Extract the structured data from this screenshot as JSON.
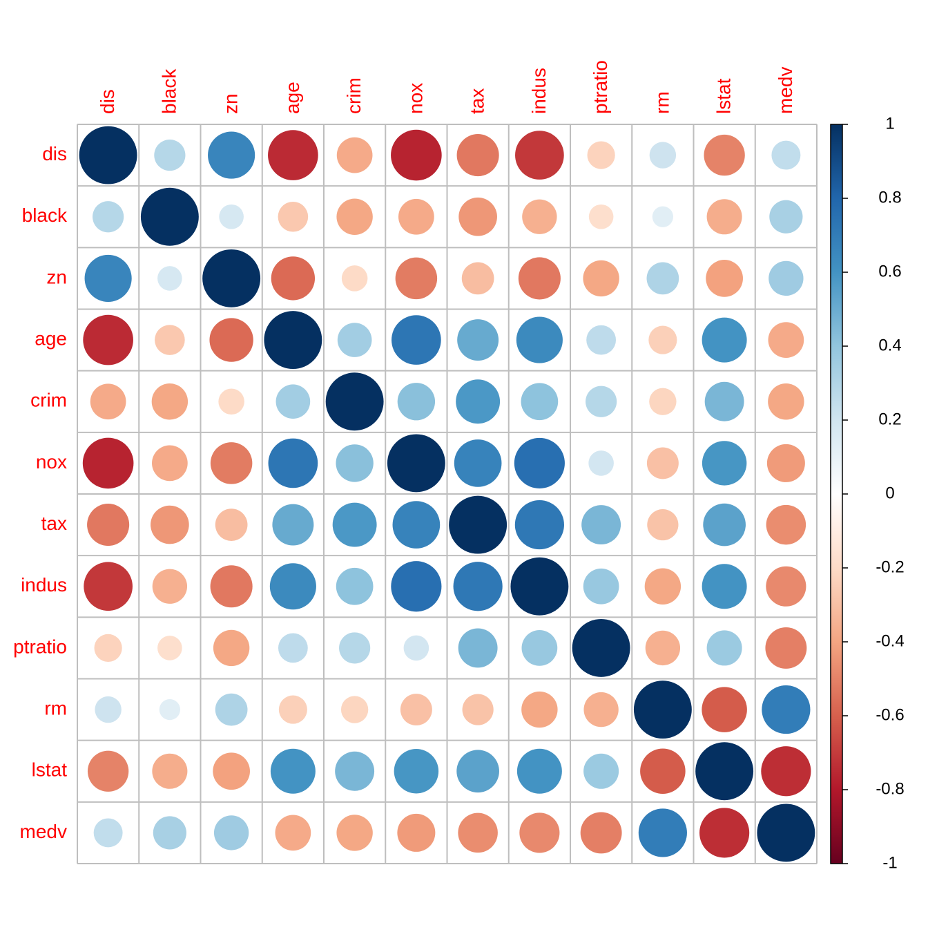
{
  "chart_data": {
    "type": "corrplot",
    "variables": [
      "dis",
      "black",
      "zn",
      "age",
      "crim",
      "nox",
      "tax",
      "indus",
      "ptratio",
      "rm",
      "lstat",
      "medv"
    ],
    "matrix": [
      [
        1,
        0.29,
        0.66,
        -0.75,
        -0.38,
        -0.77,
        -0.53,
        -0.71,
        -0.23,
        0.21,
        -0.5,
        0.25
      ],
      [
        0.29,
        1,
        0.18,
        -0.27,
        -0.39,
        -0.38,
        -0.44,
        -0.36,
        -0.18,
        0.13,
        -0.37,
        0.33
      ],
      [
        0.66,
        0.18,
        1,
        -0.57,
        -0.2,
        -0.52,
        -0.31,
        -0.53,
        -0.39,
        0.31,
        -0.41,
        0.36
      ],
      [
        -0.75,
        -0.27,
        -0.57,
        1,
        0.35,
        0.73,
        0.51,
        0.64,
        0.26,
        -0.24,
        0.6,
        -0.38
      ],
      [
        -0.38,
        -0.39,
        -0.2,
        0.35,
        1,
        0.42,
        0.58,
        0.41,
        0.29,
        -0.22,
        0.46,
        -0.39
      ],
      [
        -0.77,
        -0.38,
        -0.52,
        0.73,
        0.42,
        1,
        0.67,
        0.76,
        0.19,
        -0.3,
        0.59,
        -0.43
      ],
      [
        -0.53,
        -0.44,
        -0.31,
        0.51,
        0.58,
        0.67,
        1,
        0.72,
        0.46,
        -0.29,
        0.54,
        -0.47
      ],
      [
        -0.71,
        -0.36,
        -0.53,
        0.64,
        0.41,
        0.76,
        0.72,
        1,
        0.38,
        -0.39,
        0.6,
        -0.48
      ],
      [
        -0.23,
        -0.18,
        -0.39,
        0.26,
        0.29,
        0.19,
        0.46,
        0.38,
        1,
        -0.36,
        0.37,
        -0.51
      ],
      [
        0.21,
        0.13,
        0.31,
        -0.24,
        -0.22,
        -0.3,
        -0.29,
        -0.39,
        -0.36,
        1,
        -0.61,
        0.7
      ],
      [
        -0.5,
        -0.37,
        -0.41,
        0.6,
        0.46,
        0.59,
        0.54,
        0.6,
        0.37,
        -0.61,
        1,
        -0.74
      ],
      [
        0.25,
        0.33,
        0.36,
        -0.38,
        -0.39,
        -0.43,
        -0.47,
        -0.48,
        -0.51,
        0.7,
        -0.74,
        1
      ]
    ],
    "colors": [
      "#67001F",
      "#B2182B",
      "#D6604D",
      "#F4A582",
      "#FDDBC7",
      "#FFFFFF",
      "#D1E5F0",
      "#92C5DE",
      "#4393C3",
      "#2166AC",
      "#053061"
    ],
    "label_color": "#FF0000",
    "clim": [
      -1,
      1
    ],
    "cticks": [
      -1,
      -0.8,
      -0.6,
      -0.4,
      -0.2,
      0,
      0.2,
      0.4,
      0.6,
      0.8,
      1
    ]
  }
}
